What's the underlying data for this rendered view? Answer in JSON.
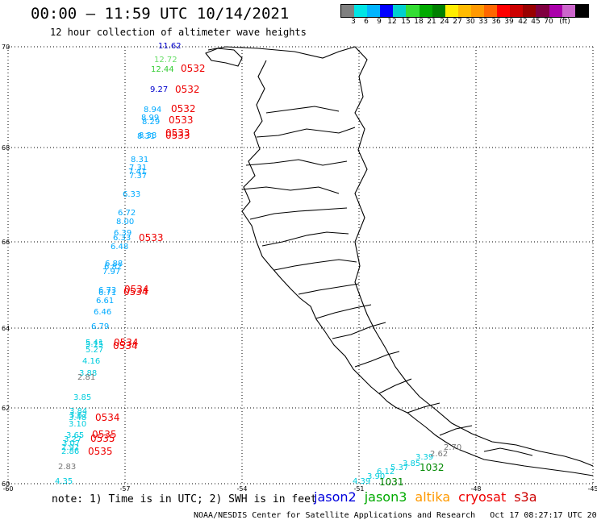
{
  "title": "00:00 – 11:59 UTC 10/14/2021",
  "subtitle": "12 hour collection of altimeter wave heights",
  "colorbar": {
    "colors": [
      "#808080",
      "#00e5e5",
      "#00b4ff",
      "#0000ff",
      "#00cfcf",
      "#33dd33",
      "#00aa00",
      "#008000",
      "#ffee00",
      "#ffbb00",
      "#ff9900",
      "#ff6600",
      "#ff0000",
      "#cc0000",
      "#990000",
      "#800040",
      "#aa00aa",
      "#cc66cc",
      "#000000"
    ],
    "labels": [
      "3",
      "6",
      "9",
      "12",
      "15",
      "18",
      "21",
      "24",
      "27",
      "30",
      "33",
      "36",
      "39",
      "42",
      "45",
      "70",
      "(ft)"
    ]
  },
  "axes": {
    "lon_ticks": [
      "-60",
      "-57",
      "-54",
      "-51",
      "-48",
      "-45"
    ],
    "lat_ticks": [
      "70",
      "68",
      "66",
      "64",
      "62",
      "60"
    ]
  },
  "measurements": [
    {
      "v": "11.62",
      "c": "#0000cc"
    },
    {
      "v": "12.72",
      "c": "#66dd66"
    },
    {
      "v": "12.44",
      "c": "#33cc33"
    },
    {
      "v": "9.27",
      "c": "#0000cc"
    },
    {
      "v": "8.94",
      "c": "#00aaff"
    },
    {
      "v": "8.99",
      "c": "#00aaff"
    },
    {
      "v": "8.29",
      "c": "#00aaff"
    },
    {
      "v": "8.38",
      "c": "#00aaff"
    },
    {
      "v": "8.31",
      "c": "#00aaff"
    },
    {
      "v": "8.31",
      "c": "#00aaff"
    },
    {
      "v": "7.31",
      "c": "#00aaff"
    },
    {
      "v": "7.41",
      "c": "#00aaff"
    },
    {
      "v": "7.37",
      "c": "#00aaff"
    },
    {
      "v": "6.33",
      "c": "#00aaff"
    },
    {
      "v": "6.72",
      "c": "#00aaff"
    },
    {
      "v": "8.00",
      "c": "#00aaff"
    },
    {
      "v": "6.39",
      "c": "#00aaff"
    },
    {
      "v": "6.33",
      "c": "#00aaff"
    },
    {
      "v": "6.48",
      "c": "#00aaff"
    },
    {
      "v": "6.88",
      "c": "#00aaff"
    },
    {
      "v": "6.82",
      "c": "#00aaff"
    },
    {
      "v": "7.97",
      "c": "#00aaff"
    },
    {
      "v": "6.73",
      "c": "#00aaff"
    },
    {
      "v": "6.71",
      "c": "#00aaff"
    },
    {
      "v": "6.61",
      "c": "#00aaff"
    },
    {
      "v": "6.46",
      "c": "#00aaff"
    },
    {
      "v": "6.79",
      "c": "#00aaff"
    },
    {
      "v": "5.41",
      "c": "#00ccdd"
    },
    {
      "v": "5.15",
      "c": "#00ccdd"
    },
    {
      "v": "5.27",
      "c": "#00ccdd"
    },
    {
      "v": "4.16",
      "c": "#00ccdd"
    },
    {
      "v": "3.88",
      "c": "#00ccdd"
    },
    {
      "v": "2.81",
      "c": "#777777"
    },
    {
      "v": "3.85",
      "c": "#00ccdd"
    },
    {
      "v": "3.84",
      "c": "#00ccdd"
    },
    {
      "v": "3.62",
      "c": "#00ccdd"
    },
    {
      "v": "3.48",
      "c": "#00ccdd"
    },
    {
      "v": "3.10",
      "c": "#00ccdd"
    },
    {
      "v": "3.65",
      "c": "#00ccdd"
    },
    {
      "v": "3.27",
      "c": "#00ccdd"
    },
    {
      "v": "3.07",
      "c": "#00ccdd"
    },
    {
      "v": "2.92",
      "c": "#00ccdd"
    },
    {
      "v": "2.86",
      "c": "#00ccdd"
    },
    {
      "v": "2.83",
      "c": "#777777"
    },
    {
      "v": "4.35",
      "c": "#00ccdd"
    },
    {
      "v": "4.39",
      "c": "#00ccdd"
    },
    {
      "v": "3.90",
      "c": "#00ccdd"
    },
    {
      "v": "6.12",
      "c": "#00ccdd"
    },
    {
      "v": "5.37",
      "c": "#00ccdd"
    },
    {
      "v": "3.85",
      "c": "#00ccdd"
    },
    {
      "v": "3.39",
      "c": "#00ccdd"
    },
    {
      "v": "2.62",
      "c": "#777777"
    },
    {
      "v": "2.70",
      "c": "#777777"
    }
  ],
  "times": [
    {
      "v": "0532",
      "c": "#ee0000"
    },
    {
      "v": "0532",
      "c": "#ee0000"
    },
    {
      "v": "0532",
      "c": "#ee0000"
    },
    {
      "v": "0533",
      "c": "#ee0000"
    },
    {
      "v": "0533",
      "c": "#ee0000"
    },
    {
      "v": "0533",
      "c": "#ee0000"
    },
    {
      "v": "0533",
      "c": "#ee0000"
    },
    {
      "v": "0534",
      "c": "#ee0000"
    },
    {
      "v": "0534",
      "c": "#ee0000"
    },
    {
      "v": "0534",
      "c": "#ee0000"
    },
    {
      "v": "0534",
      "c": "#ee0000"
    },
    {
      "v": "0534",
      "c": "#ee0000"
    },
    {
      "v": "0535",
      "c": "#ee0000"
    },
    {
      "v": "0535",
      "c": "#ee0000"
    },
    {
      "v": "0535",
      "c": "#ee0000"
    },
    {
      "v": "1032",
      "c": "#008800"
    },
    {
      "v": "1031",
      "c": "#008800"
    }
  ],
  "note": "note: 1) Time is in UTC; 2) SWH is in feet",
  "legend": [
    {
      "label": "jason2",
      "color": "#0000dd"
    },
    {
      "label": "jason3",
      "color": "#00aa00"
    },
    {
      "label": "altika",
      "color": "#ff9900"
    },
    {
      "label": "cryosat",
      "color": "#ee0000"
    },
    {
      "label": "s3a",
      "color": "#cc0000"
    }
  ],
  "footer": "NOAA/NESDIS Center for Satellite Applications and Research   Oct 17 08:27:17 UTC 2021"
}
